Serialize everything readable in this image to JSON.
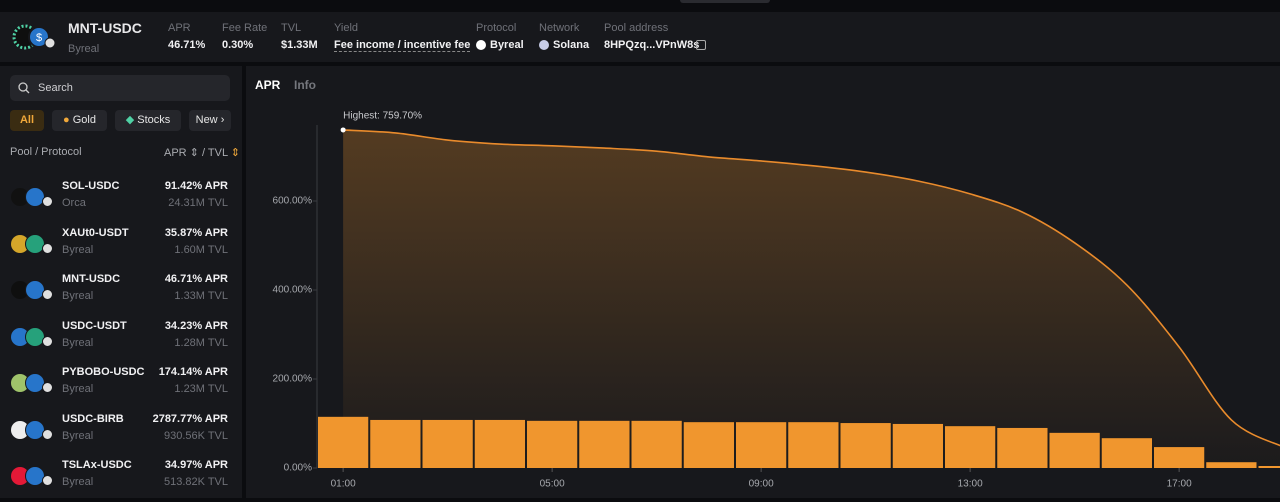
{
  "header": {
    "pair": "MNT-USDC",
    "protocol_sub": "Byreal",
    "fields": [
      {
        "label": "APR",
        "value": "46.71%"
      },
      {
        "label": "Fee Rate",
        "value": "0.30%"
      },
      {
        "label": "TVL",
        "value": "$1.33M"
      },
      {
        "label": "Yield",
        "value": "Fee income / incentive fee"
      },
      {
        "label": "Protocol",
        "value": "Byreal"
      },
      {
        "label": "Network",
        "value": "Solana"
      },
      {
        "label": "Pool address",
        "value": "8HPQzq...VPnW8s"
      }
    ]
  },
  "sidebar": {
    "search": "Search",
    "tabs": [
      "All",
      "Gold",
      "Stocks",
      "New"
    ],
    "columns": {
      "pool_protocol": "Pool / Protocol",
      "apr": "APR",
      "separator": "/",
      "tvl": "TVL"
    },
    "rows": [
      {
        "pool": "SOL-USDC",
        "protocol": "Orca",
        "apr": "91.42% APR",
        "tvl": "24.31M TVL"
      },
      {
        "pool": "XAUt0-USDT",
        "protocol": "Byreal",
        "apr": "35.87% APR",
        "tvl": "1.60M TVL"
      },
      {
        "pool": "MNT-USDC",
        "protocol": "Byreal",
        "apr": "46.71% APR",
        "tvl": "1.33M TVL"
      },
      {
        "pool": "USDC-USDT",
        "protocol": "Byreal",
        "apr": "34.23% APR",
        "tvl": "1.28M TVL"
      },
      {
        "pool": "PYBOBO-USDC",
        "protocol": "Byreal",
        "apr": "174.14% APR",
        "tvl": "1.23M TVL"
      },
      {
        "pool": "USDC-BIRB",
        "protocol": "Byreal",
        "apr": "2787.77% APR",
        "tvl": "930.56K TVL"
      },
      {
        "pool": "TSLAx-USDC",
        "protocol": "Byreal",
        "apr": "34.97% APR",
        "tvl": "513.82K TVL"
      }
    ]
  },
  "chart_tabs": [
    "APR",
    "Info"
  ],
  "chart_data": {
    "type": "combo",
    "annotation": "Highest: 759.70%",
    "categories": [
      "01:00",
      null,
      null,
      null,
      "05:00",
      null,
      null,
      null,
      "09:00",
      null,
      null,
      null,
      "13:00",
      null,
      null,
      null,
      "17:00",
      null,
      null
    ],
    "series": [
      {
        "type": "bar",
        "color": "#f0962e",
        "values": [
          115,
          108,
          108,
          108,
          106,
          106,
          106,
          103,
          103,
          103,
          101,
          99,
          94,
          90,
          79,
          67,
          47,
          13,
          4.5
        ]
      },
      {
        "type": "line",
        "color": "#e98b2c",
        "values": [
          759.7,
          753,
          737,
          728,
          724,
          719,
          712,
          699,
          690,
          679,
          665,
          645,
          616,
          575,
          506,
          411,
          272,
          108,
          47
        ]
      }
    ],
    "ylim": [
      0,
      827
    ],
    "yticks": [
      {
        "value": 0,
        "label": "0.00%"
      },
      {
        "value": 200,
        "label": "200.00%"
      },
      {
        "value": 400,
        "label": "400.00%"
      },
      {
        "value": 600,
        "label": "600.00%"
      }
    ]
  }
}
